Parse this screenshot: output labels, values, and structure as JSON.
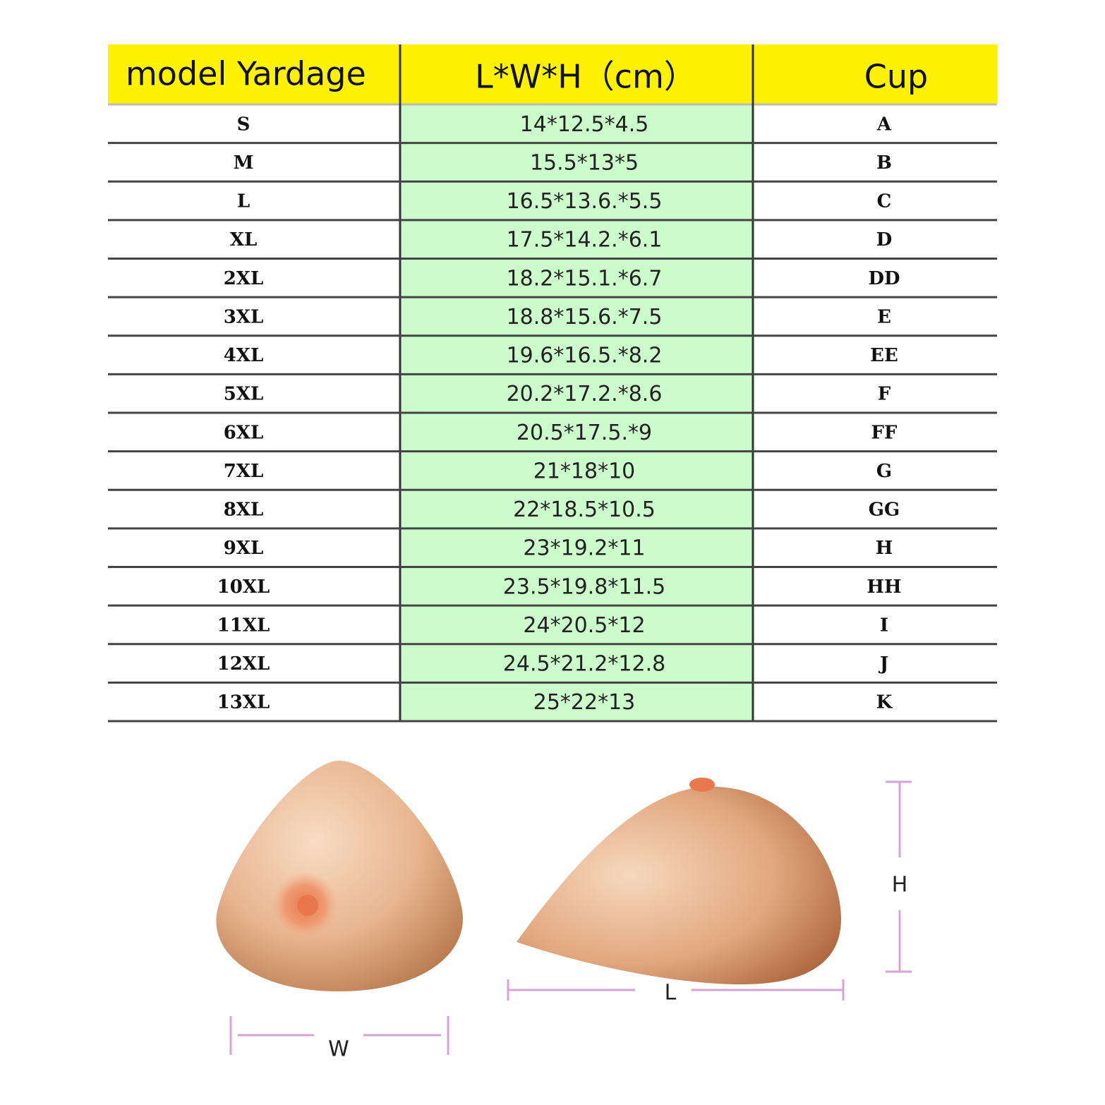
{
  "table": {
    "headers": [
      "model Yardage",
      "L*W*H（cm）",
      "Cup"
    ],
    "rows": [
      [
        "S",
        "14*12.5*4.5",
        "A"
      ],
      [
        "M",
        "15.5*13*5",
        "B"
      ],
      [
        "L",
        "16.5*13.6.*5.5",
        "C"
      ],
      [
        "XL",
        "17.5*14.2.*6.1",
        "D"
      ],
      [
        "2XL",
        "18.2*15.1.*6.7",
        "DD"
      ],
      [
        "3XL",
        "18.8*15.6.*7.5",
        "E"
      ],
      [
        "4XL",
        "19.6*16.5.*8.2",
        "EE"
      ],
      [
        "5XL",
        "20.2*17.2.*8.6",
        "F"
      ],
      [
        "6XL",
        "20.5*17.5.*9",
        "FF"
      ],
      [
        "7XL",
        "21*18*10",
        "G"
      ],
      [
        "8XL",
        "22*18.5*10.5",
        "GG"
      ],
      [
        "9XL",
        "23*19.2*11",
        "H"
      ],
      [
        "10XL",
        "23.5*19.8*11.5",
        "HH"
      ],
      [
        "11XL",
        "24*20.5*12",
        "I"
      ],
      [
        "12XL",
        "24.5*21.2*12.8",
        "J"
      ],
      [
        "13XL",
        "25*22*13",
        "K"
      ]
    ]
  },
  "diagram": {
    "width_label": "W",
    "length_label": "L",
    "height_label": "H"
  }
}
